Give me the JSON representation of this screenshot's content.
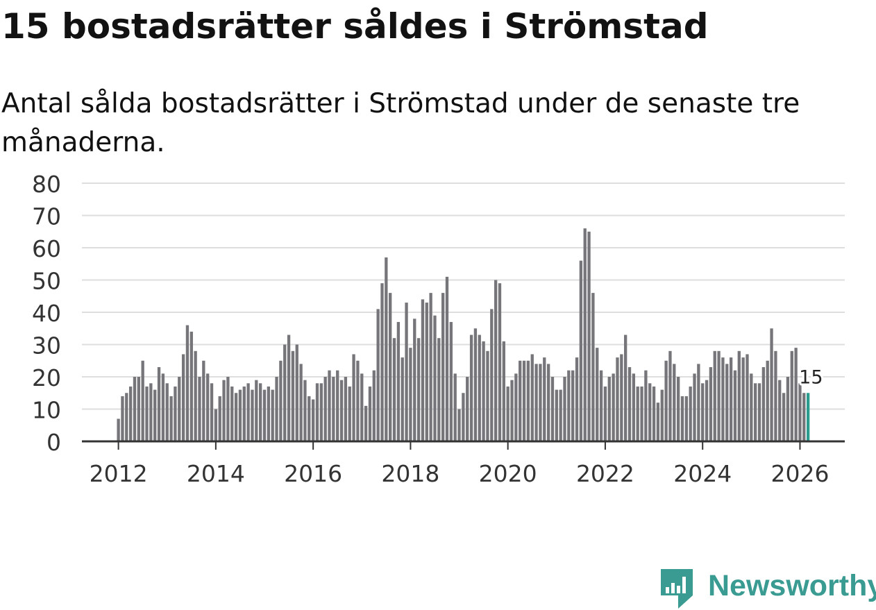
{
  "title": "15 bostadsrätter såldes i Strömstad",
  "subtitle": "Antal sålda bostadsrätter i Strömstad under de senaste tre månaderna.",
  "brand": {
    "name": "Newsworthy",
    "icon": "newsworthy-logo-icon",
    "color": "#3a9b92"
  },
  "chart_data": {
    "type": "bar",
    "title": "15 bostadsrätter såldes i Strömstad",
    "subtitle": "Antal sålda bostadsrätter i Strömstad under de senaste tre månaderna.",
    "xlabel": "",
    "ylabel": "",
    "ylim": [
      0,
      80
    ],
    "yticks": [
      "0",
      "10",
      "20",
      "30",
      "40",
      "50",
      "60",
      "70",
      "80"
    ],
    "xlim": [
      2011.25,
      2026.92
    ],
    "xticks": [
      "2012",
      "2014",
      "2016",
      "2018",
      "2020",
      "2022",
      "2024",
      "2026"
    ],
    "grid": true,
    "start": "2012-01",
    "frequency": "monthly",
    "bar_color": "#76757a",
    "highlight_color": "#2a9d8f",
    "highlight": {
      "label": "15",
      "value": 15,
      "month": "2026-03"
    },
    "values": [
      7,
      14,
      15,
      17,
      20,
      20,
      25,
      17,
      18,
      16,
      23,
      21,
      18,
      14,
      17,
      20,
      27,
      36,
      34,
      28,
      20,
      25,
      21,
      18,
      10,
      14,
      19,
      20,
      17,
      15,
      16,
      17,
      18,
      16,
      19,
      18,
      16,
      17,
      16,
      20,
      25,
      30,
      33,
      28,
      30,
      24,
      19,
      14,
      13,
      18,
      18,
      20,
      22,
      20,
      22,
      19,
      20,
      17,
      27,
      25,
      21,
      11,
      17,
      22,
      41,
      49,
      57,
      46,
      32,
      37,
      26,
      43,
      29,
      38,
      32,
      44,
      43,
      46,
      39,
      32,
      46,
      51,
      37,
      21,
      10,
      15,
      20,
      33,
      35,
      33,
      31,
      28,
      41,
      50,
      49,
      31,
      17,
      19,
      21,
      25,
      25,
      25,
      27,
      24,
      24,
      26,
      24,
      20,
      16,
      16,
      20,
      22,
      22,
      26,
      56,
      66,
      65,
      46,
      29,
      22,
      17,
      20,
      21,
      26,
      27,
      33,
      23,
      21,
      17,
      17,
      22,
      18,
      17,
      12,
      16,
      25,
      28,
      24,
      20,
      14,
      14,
      17,
      21,
      24,
      18,
      19,
      23,
      28,
      28,
      26,
      24,
      26,
      22,
      28,
      26,
      27,
      21,
      18,
      18,
      23,
      25,
      35,
      28,
      19,
      15,
      20,
      28,
      29,
      18,
      15,
      15
    ]
  }
}
